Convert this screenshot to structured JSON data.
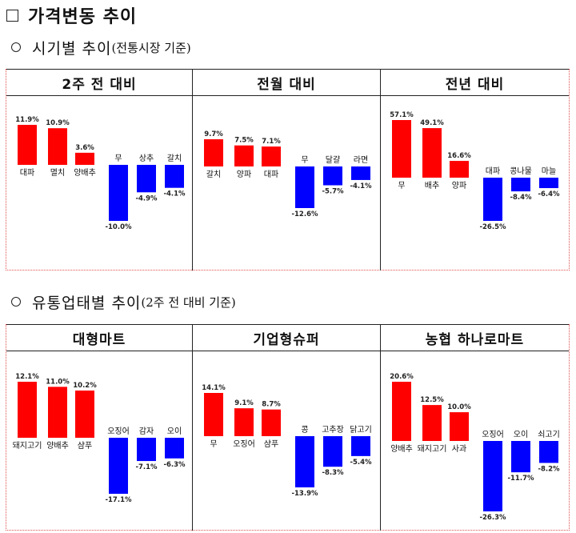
{
  "header": {
    "title": "가격변동 추이"
  },
  "section1": {
    "title": "시기별 추이",
    "note": "(전통시장 기준)"
  },
  "section2": {
    "title": "유통업태별 추이",
    "note": "(2주 전 대비 기준)"
  },
  "colors": {
    "increase": "#ff0000",
    "decrease": "#0000ff"
  },
  "chart_data": [
    {
      "type": "bar",
      "title": "2주 전 대비",
      "categories": [
        "대파",
        "멸치",
        "양배추",
        "무",
        "상추",
        "갈치"
      ],
      "values": [
        11.9,
        10.9,
        3.6,
        -10.0,
        -4.9,
        -4.1
      ],
      "labels": [
        "11.9%",
        "10.9%",
        "3.6%",
        "-10.0%",
        "-4.9%",
        "-4.1%"
      ]
    },
    {
      "type": "bar",
      "title": "전월 대비",
      "categories": [
        "갈치",
        "양파",
        "대파",
        "무",
        "달걀",
        "라면"
      ],
      "values": [
        9.7,
        7.5,
        7.1,
        -12.6,
        -5.7,
        -4.1
      ],
      "labels": [
        "9.7%",
        "7.5%",
        "7.1%",
        "-12.6%",
        "-5.7%",
        "-4.1%"
      ]
    },
    {
      "type": "bar",
      "title": "전년 대비",
      "categories": [
        "무",
        "배추",
        "양파",
        "대파",
        "콩나물",
        "마늘"
      ],
      "values": [
        57.1,
        49.1,
        16.6,
        -26.5,
        -8.4,
        -6.4
      ],
      "labels": [
        "57.1%",
        "49.1%",
        "16.6%",
        "-26.5%",
        "-8.4%",
        "-6.4%"
      ]
    },
    {
      "type": "bar",
      "title": "대형마트",
      "categories": [
        "돼지고기",
        "양배추",
        "샴푸",
        "오징어",
        "감자",
        "오이"
      ],
      "values": [
        12.1,
        11.0,
        10.2,
        -17.1,
        -7.1,
        -6.3
      ],
      "labels": [
        "12.1%",
        "11.0%",
        "10.2%",
        "-17.1%",
        "-7.1%",
        "-6.3%"
      ]
    },
    {
      "type": "bar",
      "title": "기업형슈퍼",
      "categories": [
        "무",
        "오징어",
        "샴푸",
        "콩",
        "고추장",
        "닭고기"
      ],
      "values": [
        14.1,
        9.1,
        8.7,
        -13.9,
        -8.3,
        -5.4
      ],
      "labels": [
        "14.1%",
        "9.1%",
        "8.7%",
        "-13.9%",
        "-8.3%",
        "-5.4%"
      ]
    },
    {
      "type": "bar",
      "title": "농협 하나로마트",
      "categories": [
        "양배추",
        "돼지고기",
        "사과",
        "오징어",
        "오이",
        "쇠고기"
      ],
      "values": [
        20.6,
        12.5,
        10.0,
        -26.3,
        -11.7,
        -8.2
      ],
      "labels": [
        "20.6%",
        "12.5%",
        "10.0%",
        "-26.3%",
        "-11.7%",
        "-8.2%"
      ]
    }
  ]
}
